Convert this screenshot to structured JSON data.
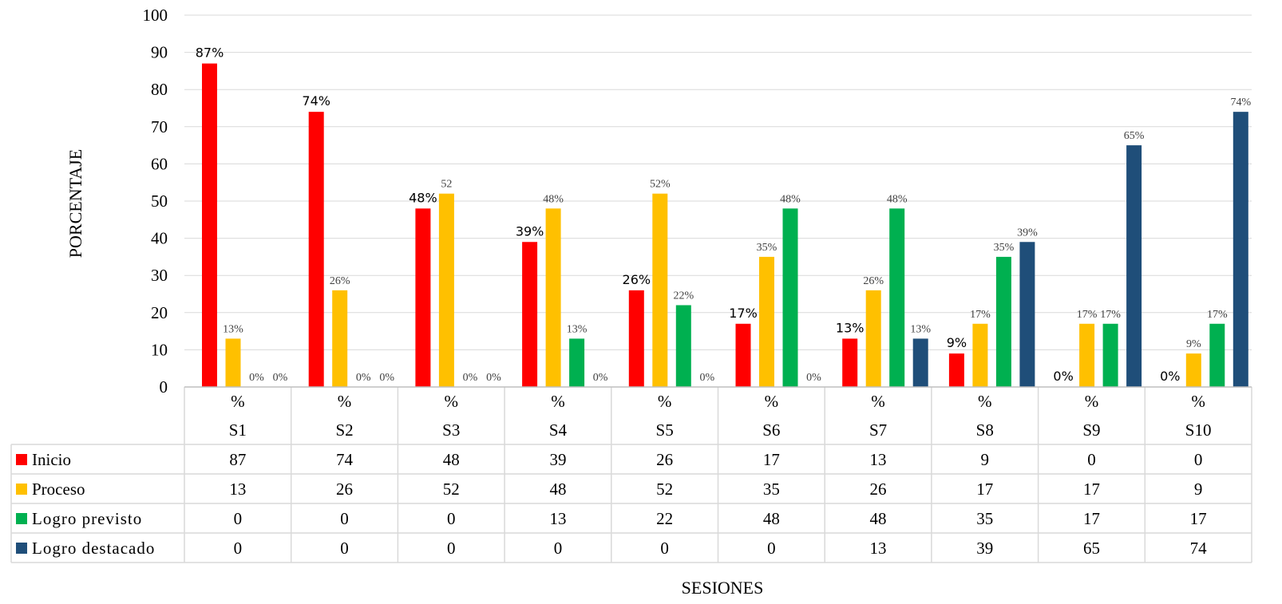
{
  "chart_data": {
    "type": "bar",
    "ylabel": "PORCENTAJE",
    "xlabel": "SESIONES",
    "ylim": [
      0,
      100
    ],
    "yticks": [
      "0",
      "10",
      "20",
      "30",
      "40",
      "50",
      "60",
      "70",
      "80",
      "90",
      "100"
    ],
    "grid": true,
    "legend": "data-table",
    "categories": [
      "S1",
      "S2",
      "S3",
      "S4",
      "S5",
      "S6",
      "S7",
      "S8",
      "S9",
      "S10"
    ],
    "category_prefix": "%",
    "series": [
      {
        "name": "Inicio",
        "color": "#ff0000",
        "values": [
          87,
          74,
          48,
          39,
          26,
          17,
          13,
          9,
          0,
          0
        ],
        "labels": [
          "87%",
          "74%",
          "48%",
          "39%",
          "26%",
          "17%",
          "13%",
          "9%",
          "0%",
          "0%"
        ]
      },
      {
        "name": "Proceso",
        "color": "#ffc000",
        "values": [
          13,
          26,
          52,
          48,
          52,
          35,
          26,
          17,
          17,
          9
        ],
        "labels": [
          "13%",
          "26%",
          "52",
          "48%",
          "52%",
          "35%",
          "26%",
          "17%",
          "17%",
          "9%"
        ]
      },
      {
        "name": "Logro previsto",
        "color": "#00b050",
        "values": [
          0,
          0,
          0,
          13,
          22,
          48,
          48,
          35,
          17,
          17
        ],
        "labels": [
          "0%",
          "0%",
          "0%",
          "13%",
          "22%",
          "48%",
          "48%",
          "35%",
          "17%",
          "17%"
        ]
      },
      {
        "name": "Logro destacado",
        "color": "#1f4e79",
        "values": [
          0,
          0,
          0,
          0,
          0,
          0,
          13,
          39,
          65,
          74
        ],
        "labels": [
          "0%",
          "0%",
          "0%",
          "0%",
          "0%",
          "0%",
          "13%",
          "39%",
          "65%",
          "74%"
        ]
      }
    ]
  }
}
